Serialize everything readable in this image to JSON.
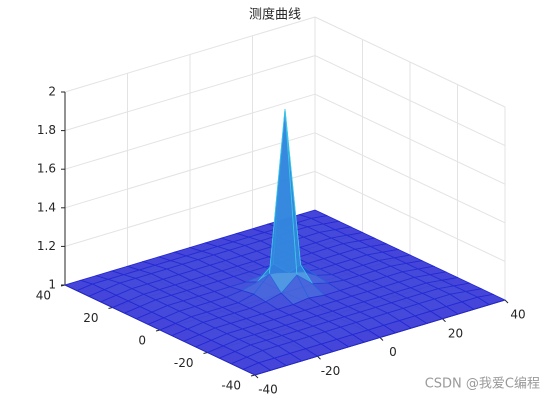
{
  "chart_data": {
    "type": "mesh",
    "title": "测度曲线",
    "x": [
      -40,
      -35,
      -30,
      -25,
      -20,
      -15,
      -10,
      -5,
      0,
      5,
      10,
      15,
      20,
      25,
      30,
      35,
      40
    ],
    "y": [
      -40,
      -35,
      -30,
      -25,
      -20,
      -15,
      -10,
      -5,
      0,
      5,
      10,
      15,
      20,
      25,
      30,
      35,
      40
    ],
    "z": [
      [
        1,
        1,
        1,
        1,
        1,
        1,
        1,
        1,
        1,
        1,
        1,
        1,
        1,
        1,
        1,
        1,
        1
      ],
      [
        1,
        1.01,
        1.01,
        1.01,
        1.01,
        1.01,
        1.01,
        1.01,
        1.01,
        1.01,
        1.01,
        1.01,
        1.01,
        1.01,
        1.01,
        1.01,
        1
      ],
      [
        1,
        1.01,
        1.02,
        1.02,
        1.02,
        1.02,
        1.02,
        1.02,
        1.02,
        1.02,
        1.02,
        1.02,
        1.02,
        1.02,
        1.02,
        1.01,
        1
      ],
      [
        1,
        1.01,
        1.02,
        1.02,
        1.02,
        1.02,
        1.02,
        1.02,
        1.02,
        1.02,
        1.02,
        1.02,
        1.02,
        1.02,
        1.02,
        1.01,
        1
      ],
      [
        1,
        1.01,
        1.02,
        1.02,
        1.02,
        1.02,
        1.02,
        1.02,
        1.02,
        1.02,
        1.02,
        1.02,
        1.02,
        1.02,
        1.02,
        1.01,
        1
      ],
      [
        1,
        1.01,
        1.02,
        1.02,
        1.02,
        1.02,
        1.02,
        1.02,
        1.02,
        1.02,
        1.02,
        1.02,
        1.02,
        1.02,
        1.02,
        1.01,
        1
      ],
      [
        1,
        1.01,
        1.02,
        1.02,
        1.02,
        1.02,
        1.02,
        1.02,
        1.03,
        1.02,
        1.02,
        1.02,
        1.02,
        1.02,
        1.02,
        1.01,
        1
      ],
      [
        1,
        1.01,
        1.02,
        1.02,
        1.02,
        1.02,
        1.03,
        1.05,
        1.12,
        1.05,
        1.03,
        1.02,
        1.02,
        1.02,
        1.02,
        1.01,
        1
      ],
      [
        1,
        1.01,
        1.02,
        1.02,
        1.02,
        1.02,
        1.04,
        1.12,
        1.95,
        1.12,
        1.04,
        1.02,
        1.02,
        1.02,
        1.02,
        1.01,
        1
      ],
      [
        1,
        1.01,
        1.02,
        1.02,
        1.02,
        1.02,
        1.03,
        1.05,
        1.12,
        1.05,
        1.03,
        1.02,
        1.02,
        1.02,
        1.02,
        1.01,
        1
      ],
      [
        1,
        1.01,
        1.02,
        1.02,
        1.02,
        1.02,
        1.02,
        1.02,
        1.03,
        1.02,
        1.02,
        1.02,
        1.02,
        1.02,
        1.02,
        1.01,
        1
      ],
      [
        1,
        1.01,
        1.02,
        1.02,
        1.02,
        1.02,
        1.02,
        1.02,
        1.02,
        1.02,
        1.02,
        1.02,
        1.02,
        1.02,
        1.02,
        1.01,
        1
      ],
      [
        1,
        1.01,
        1.02,
        1.02,
        1.02,
        1.02,
        1.02,
        1.02,
        1.02,
        1.02,
        1.02,
        1.02,
        1.02,
        1.02,
        1.02,
        1.01,
        1
      ],
      [
        1,
        1.01,
        1.02,
        1.02,
        1.02,
        1.02,
        1.02,
        1.02,
        1.02,
        1.02,
        1.02,
        1.02,
        1.02,
        1.02,
        1.02,
        1.01,
        1
      ],
      [
        1,
        1.01,
        1.02,
        1.02,
        1.02,
        1.02,
        1.02,
        1.02,
        1.02,
        1.02,
        1.02,
        1.02,
        1.02,
        1.02,
        1.02,
        1.01,
        1
      ],
      [
        1,
        1.01,
        1.01,
        1.01,
        1.01,
        1.01,
        1.01,
        1.01,
        1.01,
        1.01,
        1.01,
        1.01,
        1.01,
        1.01,
        1.01,
        1.01,
        1
      ],
      [
        1,
        1,
        1,
        1,
        1,
        1,
        1,
        1,
        1,
        1,
        1,
        1,
        1,
        1,
        1,
        1,
        1
      ]
    ],
    "xlim": [
      -40,
      40
    ],
    "ylim": [
      -40,
      40
    ],
    "zlim": [
      1,
      2
    ],
    "xticks": [
      -40,
      -20,
      0,
      20,
      40
    ],
    "yticks": [
      -40,
      -20,
      0,
      20,
      40
    ],
    "zticks": [
      1,
      1.2,
      1.4,
      1.6,
      1.8,
      2
    ],
    "grid": true,
    "low_color": "#2323d2",
    "high_color": "#3cc8e6",
    "watermark": "CSDN @我爱C编程"
  }
}
